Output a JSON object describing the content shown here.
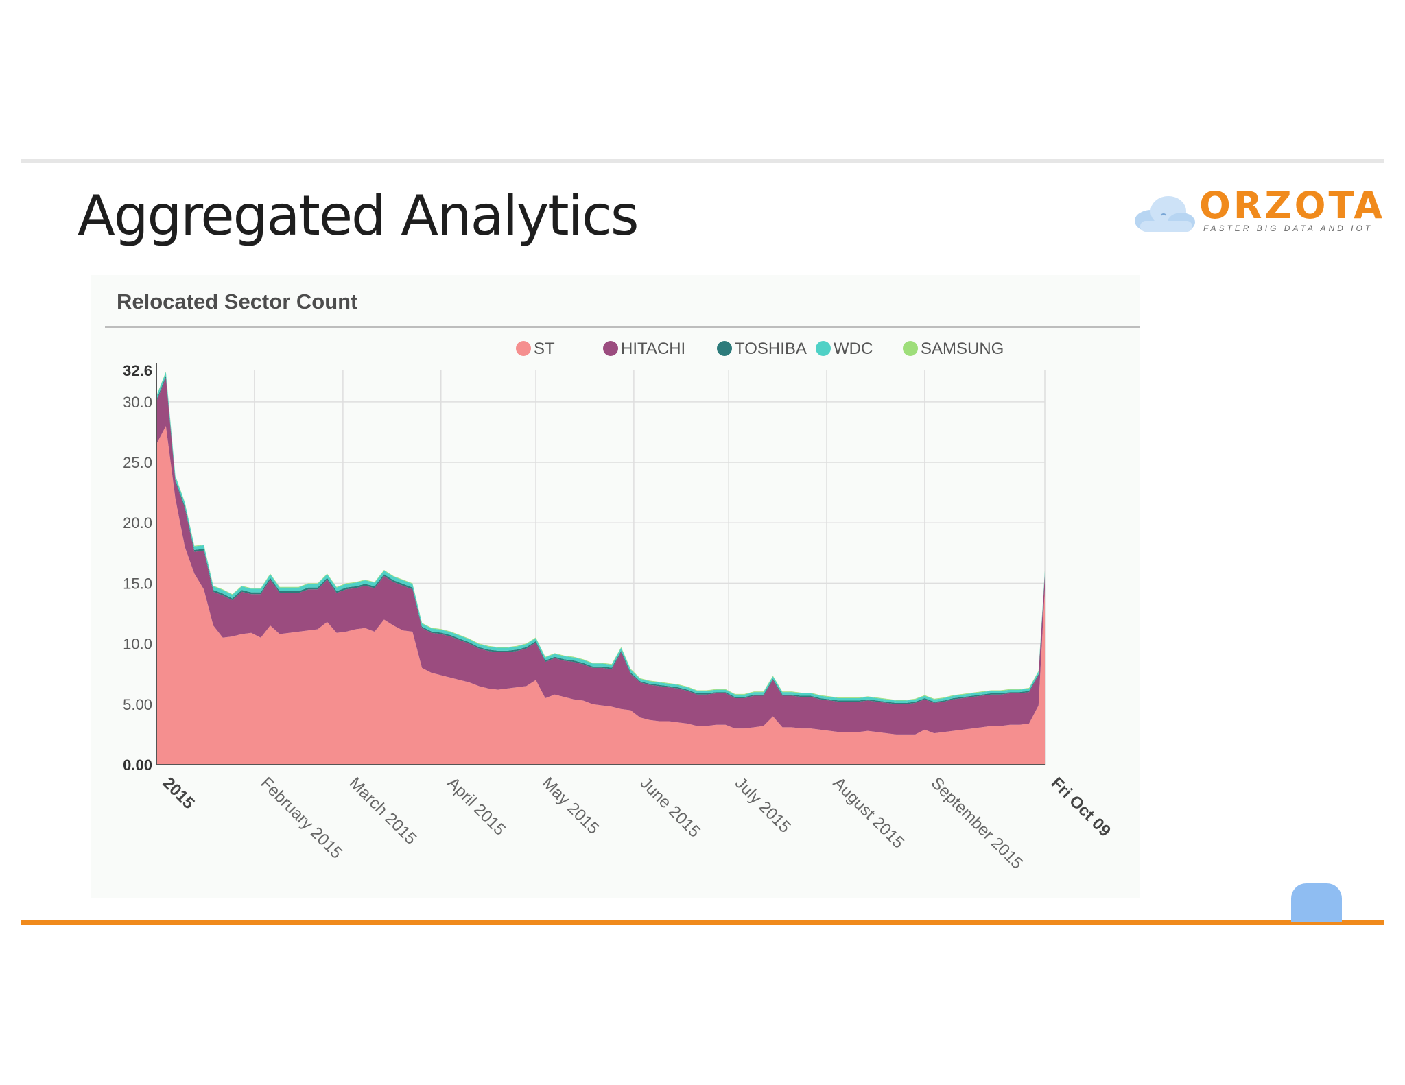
{
  "slide": {
    "title": "Aggregated Analytics",
    "logo_word": "ORZOTA",
    "logo_tagline": "FASTER BIG DATA AND IOT"
  },
  "chart_data": {
    "type": "area",
    "stacked": true,
    "title": "Relocated Sector Count",
    "ylim": [
      0,
      32.6
    ],
    "y_ticks": [
      "32.6",
      "30.0",
      "25.0",
      "20.0",
      "15.0",
      "10.0",
      "5.00",
      "0.00"
    ],
    "x_ticks": [
      "2015",
      "February 2015",
      "March 2015",
      "April 2015",
      "May 2015",
      "June 2015",
      "July 2015",
      "August 2015",
      "September 2015",
      "Fri Oct 09"
    ],
    "grid": true,
    "legend_position": "top",
    "colors": {
      "ST": "#f58f8f",
      "HITACHI": "#9b4c7f",
      "TOSHIBA": "#2d7b7b",
      "WDC": "#4fd1c6",
      "SAMSUNG": "#9ede7a"
    },
    "x": [
      "2015-01-01",
      "2015-01-04",
      "2015-01-07",
      "2015-01-10",
      "2015-01-13",
      "2015-01-16",
      "2015-01-19",
      "2015-01-22",
      "2015-01-25",
      "2015-01-28",
      "2015-01-31",
      "2015-02-03",
      "2015-02-06",
      "2015-02-09",
      "2015-02-12",
      "2015-02-15",
      "2015-02-18",
      "2015-02-21",
      "2015-02-24",
      "2015-02-27",
      "2015-03-02",
      "2015-03-05",
      "2015-03-08",
      "2015-03-11",
      "2015-03-14",
      "2015-03-17",
      "2015-03-20",
      "2015-03-23",
      "2015-03-26",
      "2015-03-29",
      "2015-04-01",
      "2015-04-04",
      "2015-04-07",
      "2015-04-10",
      "2015-04-13",
      "2015-04-16",
      "2015-04-19",
      "2015-04-22",
      "2015-04-25",
      "2015-04-28",
      "2015-05-01",
      "2015-05-04",
      "2015-05-07",
      "2015-05-10",
      "2015-05-13",
      "2015-05-16",
      "2015-05-19",
      "2015-05-22",
      "2015-05-25",
      "2015-05-28",
      "2015-05-31",
      "2015-06-03",
      "2015-06-06",
      "2015-06-09",
      "2015-06-12",
      "2015-06-15",
      "2015-06-18",
      "2015-06-21",
      "2015-06-24",
      "2015-06-27",
      "2015-06-30",
      "2015-07-03",
      "2015-07-06",
      "2015-07-09",
      "2015-07-12",
      "2015-07-15",
      "2015-07-18",
      "2015-07-21",
      "2015-07-24",
      "2015-07-27",
      "2015-07-30",
      "2015-08-02",
      "2015-08-05",
      "2015-08-08",
      "2015-08-11",
      "2015-08-14",
      "2015-08-17",
      "2015-08-20",
      "2015-08-23",
      "2015-08-26",
      "2015-08-29",
      "2015-09-01",
      "2015-09-04",
      "2015-09-07",
      "2015-09-10",
      "2015-09-13",
      "2015-09-16",
      "2015-09-19",
      "2015-09-22",
      "2015-09-25",
      "2015-09-28",
      "2015-10-01",
      "2015-10-04",
      "2015-10-07",
      "2015-10-09"
    ],
    "series": [
      {
        "name": "ST",
        "values": [
          26.5,
          28,
          22,
          18,
          15.8,
          14.5,
          11.5,
          10.5,
          10.6,
          10.8,
          10.9,
          10.5,
          11.5,
          10.8,
          10.9,
          11,
          11.1,
          11.2,
          11.8,
          10.9,
          11,
          11.2,
          11.3,
          11,
          12,
          11.5,
          11.1,
          11,
          8,
          7.6,
          7.4,
          7.2,
          7,
          6.8,
          6.5,
          6.3,
          6.2,
          6.3,
          6.4,
          6.5,
          7,
          5.5,
          5.8,
          5.6,
          5.4,
          5.3,
          5,
          4.9,
          4.8,
          4.6,
          4.5,
          3.9,
          3.7,
          3.6,
          3.6,
          3.5,
          3.4,
          3.2,
          3.2,
          3.3,
          3.3,
          3,
          3,
          3.1,
          3.2,
          4,
          3.1,
          3.1,
          3,
          3,
          2.9,
          2.8,
          2.7,
          2.7,
          2.7,
          2.8,
          2.7,
          2.6,
          2.5,
          2.5,
          2.5,
          2.9,
          2.6,
          2.7,
          2.8,
          2.9,
          3,
          3.1,
          3.2,
          3.2,
          3.3,
          3.3,
          3.4,
          4.9,
          14.5
        ]
      },
      {
        "name": "HITACHI",
        "values": [
          3.5,
          4,
          1.4,
          3.2,
          1.8,
          3.2,
          2.8,
          3.5,
          3,
          3.5,
          3.2,
          3.6,
          3.8,
          3.4,
          3.3,
          3.2,
          3.4,
          3.3,
          3.5,
          3.3,
          3.5,
          3.4,
          3.5,
          3.6,
          3.6,
          3.6,
          3.7,
          3.5,
          3.3,
          3.3,
          3.4,
          3.4,
          3.3,
          3.2,
          3.1,
          3.1,
          3.1,
          3,
          3,
          3.1,
          3.1,
          3,
          3,
          3,
          3.1,
          3,
          3,
          3.1,
          3.1,
          4.7,
          3,
          2.9,
          2.9,
          2.9,
          2.8,
          2.8,
          2.7,
          2.6,
          2.6,
          2.6,
          2.6,
          2.5,
          2.5,
          2.6,
          2.5,
          3,
          2.6,
          2.6,
          2.6,
          2.6,
          2.5,
          2.5,
          2.5,
          2.5,
          2.5,
          2.5,
          2.5,
          2.5,
          2.5,
          2.5,
          2.6,
          2.5,
          2.5,
          2.5,
          2.6,
          2.6,
          2.6,
          2.6,
          2.6,
          2.6,
          2.6,
          2.6,
          2.6,
          2.5,
          1.2
        ]
      },
      {
        "name": "TOSHIBA",
        "values": [
          0.15,
          0.15,
          0.15,
          0.15,
          0.15,
          0.15,
          0.15,
          0.15,
          0.15,
          0.15,
          0.15,
          0.15,
          0.15,
          0.15,
          0.15,
          0.15,
          0.15,
          0.15,
          0.15,
          0.15,
          0.15,
          0.15,
          0.15,
          0.15,
          0.15,
          0.15,
          0.15,
          0.15,
          0.12,
          0.12,
          0.12,
          0.12,
          0.12,
          0.12,
          0.12,
          0.12,
          0.12,
          0.12,
          0.12,
          0.12,
          0.12,
          0.12,
          0.12,
          0.12,
          0.12,
          0.12,
          0.12,
          0.12,
          0.12,
          0.12,
          0.12,
          0.1,
          0.1,
          0.1,
          0.1,
          0.1,
          0.1,
          0.1,
          0.1,
          0.1,
          0.1,
          0.1,
          0.1,
          0.1,
          0.1,
          0.1,
          0.1,
          0.1,
          0.1,
          0.1,
          0.1,
          0.1,
          0.1,
          0.1,
          0.1,
          0.1,
          0.1,
          0.1,
          0.1,
          0.1,
          0.1,
          0.1,
          0.1,
          0.1,
          0.1,
          0.1,
          0.1,
          0.1,
          0.1,
          0.1,
          0.1,
          0.1,
          0.1,
          0.1,
          0.1
        ]
      },
      {
        "name": "WDC",
        "values": [
          0.3,
          0.3,
          0.3,
          0.3,
          0.3,
          0.3,
          0.3,
          0.3,
          0.3,
          0.3,
          0.3,
          0.3,
          0.3,
          0.3,
          0.3,
          0.3,
          0.3,
          0.3,
          0.3,
          0.3,
          0.3,
          0.3,
          0.3,
          0.3,
          0.3,
          0.3,
          0.3,
          0.3,
          0.25,
          0.25,
          0.25,
          0.25,
          0.25,
          0.25,
          0.25,
          0.25,
          0.25,
          0.25,
          0.25,
          0.25,
          0.25,
          0.25,
          0.25,
          0.25,
          0.25,
          0.25,
          0.25,
          0.25,
          0.25,
          0.25,
          0.25,
          0.2,
          0.2,
          0.2,
          0.2,
          0.2,
          0.2,
          0.2,
          0.2,
          0.2,
          0.2,
          0.2,
          0.2,
          0.2,
          0.2,
          0.2,
          0.2,
          0.2,
          0.2,
          0.2,
          0.2,
          0.2,
          0.2,
          0.2,
          0.2,
          0.2,
          0.2,
          0.2,
          0.2,
          0.2,
          0.2,
          0.2,
          0.2,
          0.2,
          0.2,
          0.2,
          0.2,
          0.2,
          0.2,
          0.2,
          0.2,
          0.2,
          0.2,
          0.2,
          0.2
        ]
      },
      {
        "name": "SAMSUNG",
        "values": [
          0.05,
          0.05,
          0.05,
          0.05,
          0.05,
          0.05,
          0.05,
          0.05,
          0.05,
          0.05,
          0.05,
          0.05,
          0.05,
          0.05,
          0.05,
          0.05,
          0.05,
          0.05,
          0.05,
          0.05,
          0.05,
          0.05,
          0.05,
          0.05,
          0.05,
          0.05,
          0.05,
          0.05,
          0.05,
          0.05,
          0.05,
          0.05,
          0.05,
          0.05,
          0.05,
          0.05,
          0.05,
          0.05,
          0.05,
          0.05,
          0.05,
          0.05,
          0.05,
          0.05,
          0.05,
          0.05,
          0.05,
          0.05,
          0.05,
          0.05,
          0.05,
          0.05,
          0.05,
          0.05,
          0.05,
          0.05,
          0.05,
          0.05,
          0.05,
          0.05,
          0.05,
          0.05,
          0.05,
          0.05,
          0.05,
          0.05,
          0.05,
          0.05,
          0.05,
          0.05,
          0.05,
          0.05,
          0.05,
          0.05,
          0.05,
          0.05,
          0.05,
          0.05,
          0.05,
          0.05,
          0.05,
          0.05,
          0.05,
          0.05,
          0.05,
          0.05,
          0.05,
          0.05,
          0.05,
          0.05,
          0.05,
          0.05,
          0.05,
          0.05,
          0.05
        ]
      }
    ]
  }
}
